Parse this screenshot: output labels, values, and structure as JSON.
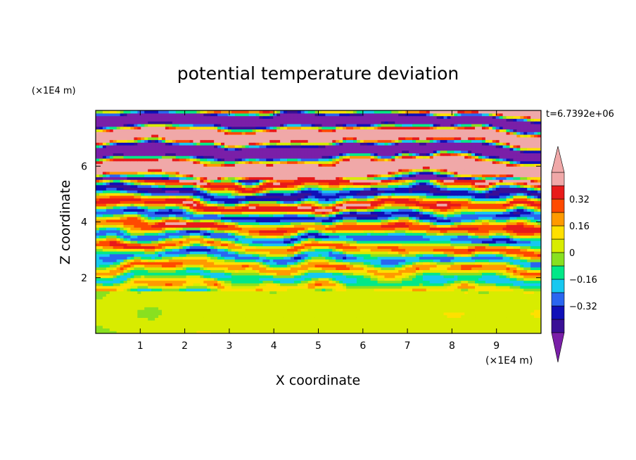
{
  "chart_data": {
    "type": "heatmap",
    "title": "potential temperature deviation",
    "xlabel": "X coordinate",
    "ylabel": "Z coordinate",
    "x_unit_label": "(×1E4 m)",
    "y_unit_label": "(×1E4 m)",
    "time_label": "t=6.7392e+06",
    "xlim": [
      0,
      10
    ],
    "ylim": [
      0,
      8
    ],
    "x_ticks": [
      "1",
      "2",
      "3",
      "4",
      "5",
      "6",
      "7",
      "8",
      "9"
    ],
    "y_ticks": [
      "2",
      "4",
      "6"
    ],
    "colorbar": {
      "tick_labels": [
        "0.32",
        "0.16",
        "0",
        "−0.16",
        "−0.32"
      ],
      "tick_values": [
        0.32,
        0.16,
        0,
        -0.16,
        -0.32
      ],
      "levels": [
        -0.48,
        -0.4,
        -0.32,
        -0.24,
        -0.16,
        -0.08,
        0,
        0.08,
        0.16,
        0.24,
        0.32,
        0.4,
        0.48
      ],
      "colors": [
        "#7a1fa8",
        "#3a1096",
        "#1010b8",
        "#2a66f0",
        "#16c8f0",
        "#00e888",
        "#88e020",
        "#d8ec00",
        "#ffe000",
        "#ff9a00",
        "#ff4a00",
        "#e81a1a",
        "#f0a8a8"
      ],
      "extend": "both"
    },
    "layers": [
      {
        "z_range": [
          0,
          1.5
        ],
        "pattern": "near-zero values, green (0 to 0.08)"
      },
      {
        "z_range": [
          1.5,
          5.5
        ],
        "pattern": "alternating thin horizontal bands, roughly -0.4 to +0.4"
      },
      {
        "z_range": [
          5.5,
          8
        ],
        "pattern": "saturated bands alternating below -0.48 and above 0.48"
      }
    ]
  }
}
